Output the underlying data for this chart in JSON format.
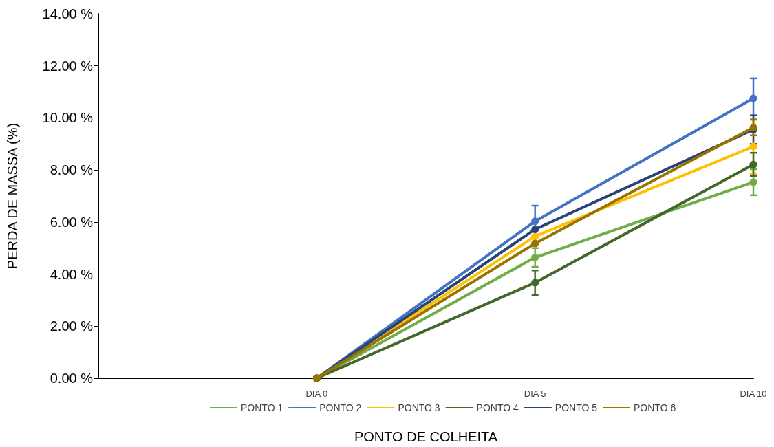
{
  "chart_data": {
    "type": "line",
    "xlabel": "PONTO DE COLHEITA",
    "ylabel": "PERDA DE MASSA (%)",
    "categories": [
      "DIA 0",
      "DIA 5",
      "DIA 10"
    ],
    "ylim": [
      0,
      14
    ],
    "yticks": [
      {
        "value": 0,
        "label": "0.00 %"
      },
      {
        "value": 2,
        "label": "2.00 %"
      },
      {
        "value": 4,
        "label": "4.00 %"
      },
      {
        "value": 6,
        "label": "6.00 %"
      },
      {
        "value": 8,
        "label": "8.00 %"
      },
      {
        "value": 10,
        "label": "10.00 %"
      },
      {
        "value": 12,
        "label": "12.00 %"
      },
      {
        "value": 14,
        "label": "14.00 %"
      }
    ],
    "grid": false,
    "legend": "bottom",
    "marker": "circle",
    "line_style": "solid",
    "series": [
      {
        "name": "PONTO 1",
        "color": "#70ad47",
        "values": [
          0,
          4.64,
          7.53
        ],
        "errors": [
          null,
          0.36,
          0.5
        ]
      },
      {
        "name": "PONTO 2",
        "color": "#4472c4",
        "values": [
          0,
          6.03,
          10.75
        ],
        "errors": [
          null,
          0.6,
          0.77
        ]
      },
      {
        "name": "PONTO 3",
        "color": "#ffc000",
        "values": [
          0,
          5.45,
          8.9
        ],
        "errors": [
          null,
          null,
          1.05
        ]
      },
      {
        "name": "PONTO 4",
        "color": "#43682b",
        "values": [
          0,
          3.67,
          8.21
        ],
        "errors": [
          null,
          0.47,
          0.45
        ]
      },
      {
        "name": "PONTO 5",
        "color": "#264478",
        "values": [
          0,
          5.72,
          9.55
        ],
        "errors": [
          null,
          null,
          0.55
        ]
      },
      {
        "name": "PONTO 6",
        "color": "#997300",
        "values": [
          0,
          5.18,
          9.63
        ],
        "errors": [
          null,
          null,
          0.3
        ]
      }
    ]
  }
}
